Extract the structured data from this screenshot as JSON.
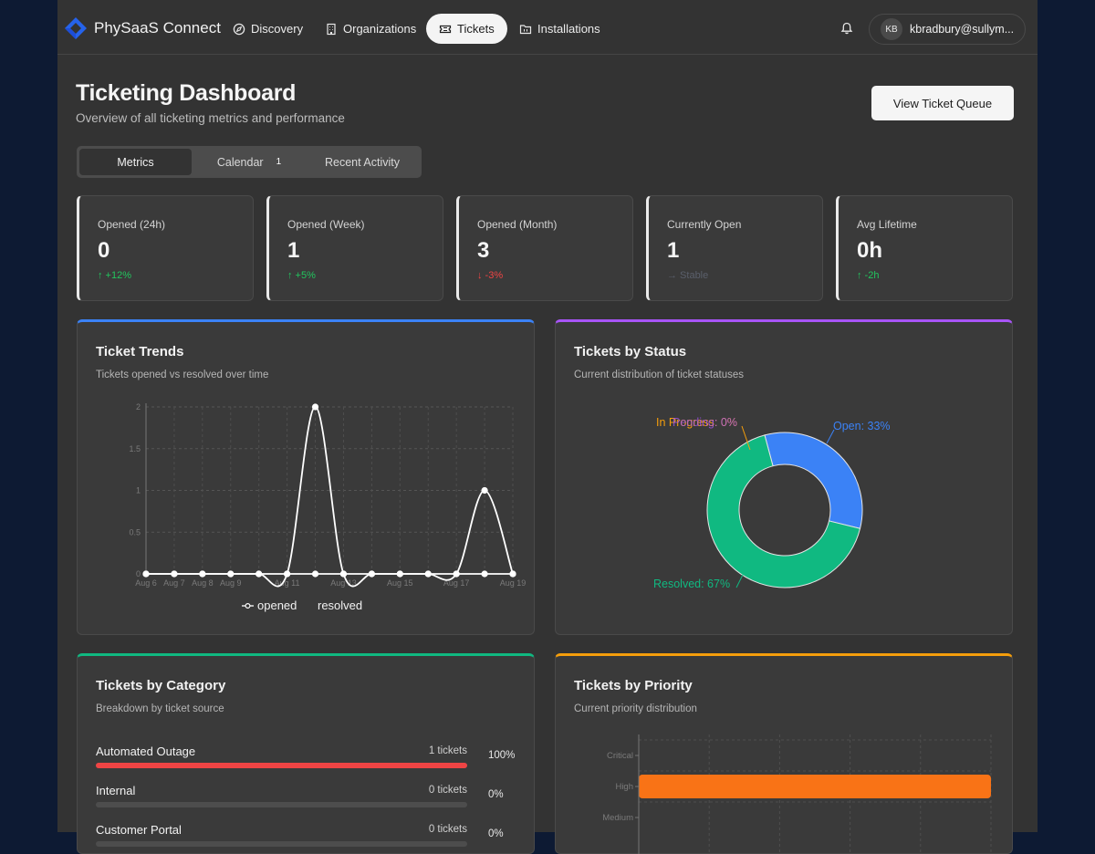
{
  "nav": {
    "brand": "PhySaaS Connect",
    "links": [
      {
        "label": "Discovery",
        "icon": "compass-icon"
      },
      {
        "label": "Organizations",
        "icon": "building-icon"
      },
      {
        "label": "Tickets",
        "icon": "ticket-icon",
        "active": true
      },
      {
        "label": "Installations",
        "icon": "folder-icon"
      }
    ],
    "user_initials": "KB",
    "user_email": "kbradbury@sullym..."
  },
  "header": {
    "title": "Ticketing Dashboard",
    "subtitle": "Overview of all ticketing metrics and performance",
    "queue_button": "View Ticket Queue"
  },
  "tabs": [
    {
      "label": "Metrics",
      "active": true
    },
    {
      "label": "Calendar",
      "badge": "1"
    },
    {
      "label": "Recent Activity"
    }
  ],
  "stats": [
    {
      "label": "Opened (24h)",
      "value": "0",
      "trend": "↑ +12%",
      "trend_color": "#22c55e"
    },
    {
      "label": "Opened (Week)",
      "value": "1",
      "trend": "↑ +5%",
      "trend_color": "#22c55e"
    },
    {
      "label": "Opened (Month)",
      "value": "3",
      "trend": "↓ -3%",
      "trend_color": "#ef4444"
    },
    {
      "label": "Currently Open",
      "value": "1",
      "trend": "→ Stable",
      "trend_color": "#5a5f6b"
    },
    {
      "label": "Avg Lifetime",
      "value": "0h",
      "trend": "↑ -2h",
      "trend_color": "#22c55e"
    }
  ],
  "panels": {
    "trends": {
      "title": "Ticket Trends",
      "subtitle": "Tickets opened vs resolved over time",
      "accent": "#3b82f6"
    },
    "status": {
      "title": "Tickets by Status",
      "subtitle": "Current distribution of ticket statuses",
      "accent": "#a855f7"
    },
    "category": {
      "title": "Tickets by Category",
      "subtitle": "Breakdown by ticket source",
      "accent": "#10b981"
    },
    "priority": {
      "title": "Tickets by Priority",
      "subtitle": "Current priority distribution",
      "accent": "#f59e0b"
    }
  },
  "categories": [
    {
      "label": "Automated Outage",
      "count": "1 tickets",
      "pct": "100%",
      "fraction": 1.0,
      "color": "#ef4444"
    },
    {
      "label": "Internal",
      "count": "0 tickets",
      "pct": "0%",
      "fraction": 0,
      "color": "#6b7280"
    },
    {
      "label": "Customer Portal",
      "count": "0 tickets",
      "pct": "0%",
      "fraction": 0,
      "color": "#6b7280"
    }
  ],
  "chart_data": [
    {
      "type": "line",
      "x": [
        "Aug 6",
        "Aug 7",
        "Aug 8",
        "Aug 9",
        "Aug 10",
        "Aug 11",
        "Aug 12",
        "Aug 13",
        "Aug 14",
        "Aug 15",
        "Aug 16",
        "Aug 17",
        "Aug 18",
        "Aug 19"
      ],
      "x_tick_labels": [
        "Aug 6",
        "Aug 7",
        "Aug 8",
        "Aug 9",
        "Aug 11",
        "Aug 13",
        "Aug 15",
        "Aug 17",
        "Aug 19"
      ],
      "series": [
        {
          "name": "opened",
          "values": [
            0,
            0,
            0,
            0,
            0,
            0,
            2,
            0,
            0,
            0,
            0,
            0,
            1,
            0
          ],
          "color": "#ffffff"
        },
        {
          "name": "resolved",
          "values": [
            0,
            0,
            0,
            0,
            0,
            0,
            0,
            0,
            0,
            0,
            0,
            0,
            0,
            0
          ],
          "color": "#ffffff"
        }
      ],
      "ylim": [
        0,
        2
      ],
      "y_ticks": [
        "0",
        "0.5",
        "1",
        "1.5",
        "2"
      ],
      "grid": true,
      "legend": "bottom"
    },
    {
      "type": "pie",
      "categories": [
        "Open",
        "Resolved",
        "In Progress",
        "Pending"
      ],
      "values": [
        33,
        67,
        0,
        0
      ],
      "labels": [
        "Open: 33%",
        "Resolved: 67%",
        "In Progress: 0%",
        "Pending: 0%"
      ],
      "colors": [
        "#3b82f6",
        "#10b981",
        "#f59e0b",
        "#a855f7"
      ]
    },
    {
      "type": "bar",
      "orientation": "horizontal",
      "categories": [
        "Critical",
        "High",
        "Medium"
      ],
      "values": [
        0,
        1,
        0
      ],
      "colors": [
        "#f97316",
        "#f97316",
        "#f97316"
      ],
      "grid": true
    }
  ]
}
